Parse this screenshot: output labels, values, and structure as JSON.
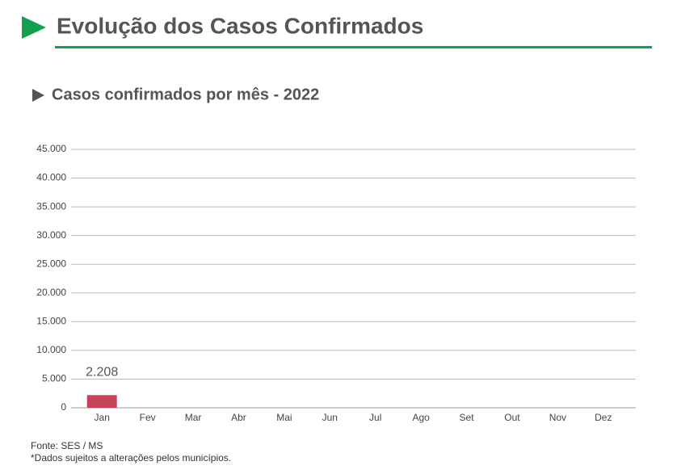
{
  "chart_data": {
    "type": "bar",
    "title": "Evolução dos Casos Confirmados",
    "subtitle": "Casos confirmados por mês - 2022",
    "categories": [
      "Jan",
      "Fev",
      "Mar",
      "Abr",
      "Mai",
      "Jun",
      "Jul",
      "Ago",
      "Set",
      "Out",
      "Nov",
      "Dez"
    ],
    "values": [
      2208,
      null,
      null,
      null,
      null,
      null,
      null,
      null,
      null,
      null,
      null,
      null
    ],
    "value_labels": [
      "2.208",
      null,
      null,
      null,
      null,
      null,
      null,
      null,
      null,
      null,
      null,
      null
    ],
    "color": "#c8415a",
    "ylim": [
      0,
      45000
    ],
    "yticks": [
      0,
      {
        "value": 5000,
        "label": "5.000"
      },
      {
        "value": 10000,
        "label": "10.000"
      },
      {
        "value": 15000,
        "label": "15.000"
      },
      {
        "value": 20000,
        "label": "20.000"
      },
      {
        "value": 25000,
        "label": "25.000"
      },
      {
        "value": 30000,
        "label": "30.000"
      },
      {
        "value": 35000,
        "label": "35.000"
      },
      {
        "value": 40000,
        "label": "40.000"
      },
      {
        "value": 45000,
        "label": "45.000"
      }
    ],
    "grid": true,
    "notes": [
      "Fonte: SES / MS",
      "*Dados sujeitos a alterações pelos municípios."
    ]
  }
}
